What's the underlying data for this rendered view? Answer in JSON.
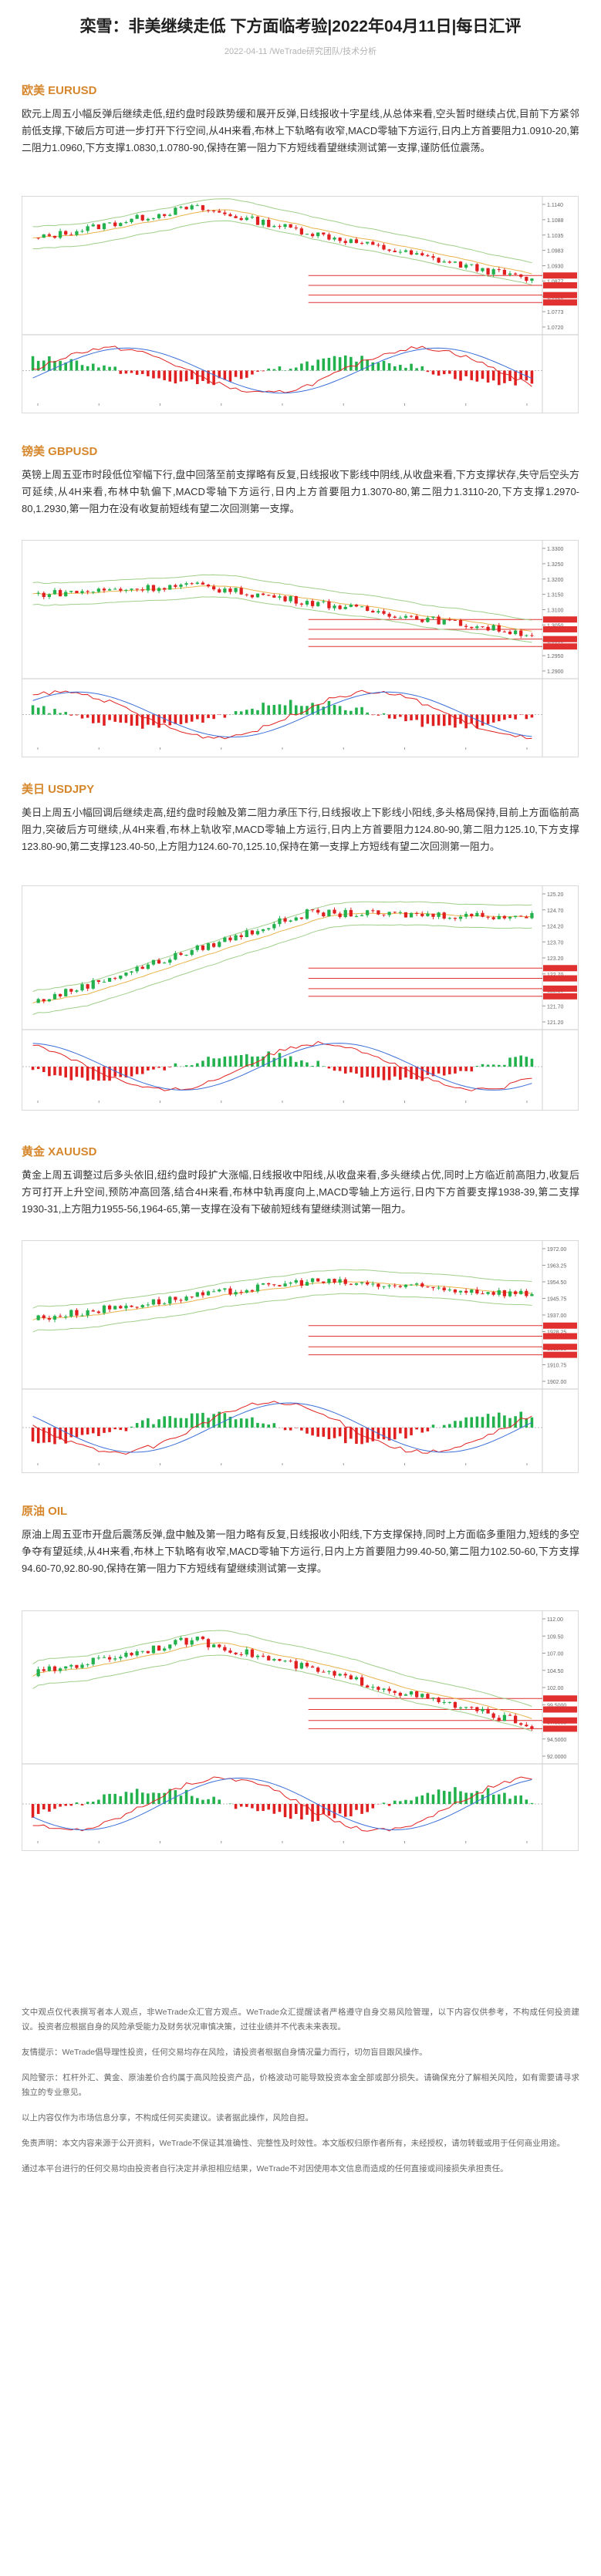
{
  "article": {
    "title": "栾雪：非美继续走低 下方面临考验|2022年04月11日|每日汇评",
    "date": "2022-04-11",
    "author": "/WeTrade研究团队/技术分析"
  },
  "sections": [
    {
      "title": "欧美 EURUSD",
      "body": "欧元上周五小幅反弹后继续走低,纽约盘时段跌势缓和展开反弹,日线报收十字星线,从总体来看,空头暂时继续占优,目前下方紧邻前低支撑,下破后方可进一步打开下行空间,从4H来看,布林上下轨略有收窄,MACD零轴下方运行,日内上方首要阻力1.0910-20,第二阻力1.0960,下方支撑1.0830,1.0780-90,保持在第一阻力下方短线看望继续测试第一支撑,谨防低位震荡。"
    },
    {
      "title": "镑美 GBPUSD",
      "body": "英镑上周五亚市时段低位窄幅下行,盘中回落至前支撑略有反复,日线报收下影线中阴线,从收盘来看,下方支撑状存,失守后空头方可延续,从4H来看,布林中轨偏下,MACD零轴下方运行,日内上方首要阻力1.3070-80,第二阻力1.3110-20,下方支撑1.2970-80,1.2930,第一阻力在没有收复前短线有望二次回测第一支撑。"
    },
    {
      "title": "美日 USDJPY",
      "body": "美日上周五小幅回调后继续走高,纽约盘时段触及第二阻力承压下行,日线报收上下影线小阳线,多头格局保持,目前上方面临前高阻力,突破后方可继续,从4H来看,布林上轨收窄,MACD零轴上方运行,日内上方首要阻力124.80-90,第二阻力125.10,下方支撑123.80-90,第二支撑123.40-50,上方阻力124.60-70,125.10,保持在第一支撑上方短线有望二次回测第一阻力。"
    },
    {
      "title": "黄金 XAUUSD",
      "body": "黄金上周五调整过后多头依旧,纽约盘时段扩大涨幅,日线报收中阳线,从收盘来看,多头继续占优,同时上方临近前高阻力,收复后方可打开上升空间,预防冲高回落,结合4H来看,布林中轨再度向上,MACD零轴上方运行,日内下方首要支撑1938-39,第二支撑1930-31,上方阻力1955-56,1964-65,第一支撑在没有下破前短线有望继续测试第一阻力。"
    },
    {
      "title": "原油 OIL",
      "body": "原油上周五亚市开盘后震荡反弹,盘中触及第一阻力略有反复,日线报收小阳线,下方支撑保持,同时上方面临多重阻力,短线的多空争夺有望延续,从4H来看,布林上下轨略有收窄,MACD零轴下方运行,日内上方首要阻力99.40-50,第二阻力102.50-60,下方支撑94.60-70,92.80-90,保持在第一阻力下方短线有望继续测试第一支撑。"
    }
  ],
  "charts": [
    {
      "symbol": "EURUSD H4",
      "trend": "down",
      "price_top": 1.114,
      "price_bottom": 1.072,
      "start": 1.102,
      "peak": 1.113,
      "end": 1.088
    },
    {
      "symbol": "GBPUSD H4",
      "trend": "down",
      "price_top": 1.33,
      "price_bottom": 1.29,
      "start": 1.315,
      "peak": 1.318,
      "end": 1.302
    },
    {
      "symbol": "USDJPY H4",
      "trend": "up",
      "price_top": 125.2,
      "price_bottom": 121.2,
      "start": 121.8,
      "peak": 124.6,
      "end": 124.5
    },
    {
      "symbol": "XAUUSD H4",
      "trend": "up",
      "price_top": 1972.0,
      "price_bottom": 1902.0,
      "start": 1935.0,
      "peak": 1955.0,
      "end": 1948.0
    },
    {
      "symbol": "OIL H4",
      "trend": "down",
      "price_top": 112.0,
      "price_bottom": 92.0,
      "start": 104.0,
      "peak": 109.0,
      "end": 96.5
    }
  ],
  "disclaimer": {
    "paragraphs": [
      "文中观点仅代表撰写者本人观点，非WeTrade众汇官方观点。WeTrade众汇提醒读者严格遵守自身交易风险管理，以下内容仅供参考，不构成任何投资建议。投资者应根据自身的风险承受能力及财务状况审慎决策，过往业绩并不代表未来表现。",
      "友情提示：WeTrade倡导理性投资，任何交易均存在风险，请投资者根据自身情况量力而行，切勿盲目跟风操作。",
      "风险警示：杠杆外汇、黄金、原油差价合约属于高风险投资产品，价格波动可能导致投资本金全部或部分损失。请确保充分了解相关风险，如有需要请寻求独立的专业意见。",
      "以上内容仅作为市场信息分享，不构成任何买卖建议。读者据此操作，风险自担。",
      "免责声明：本文内容来源于公开资料，WeTrade不保证其准确性、完整性及时效性。本文版权归原作者所有，未经授权，请勿转载或用于任何商业用途。",
      "通过本平台进行的任何交易均由投资者自行决定并承担相应结果，WeTrade不对因使用本文信息而造成的任何直接或间接损失承担责任。"
    ]
  }
}
